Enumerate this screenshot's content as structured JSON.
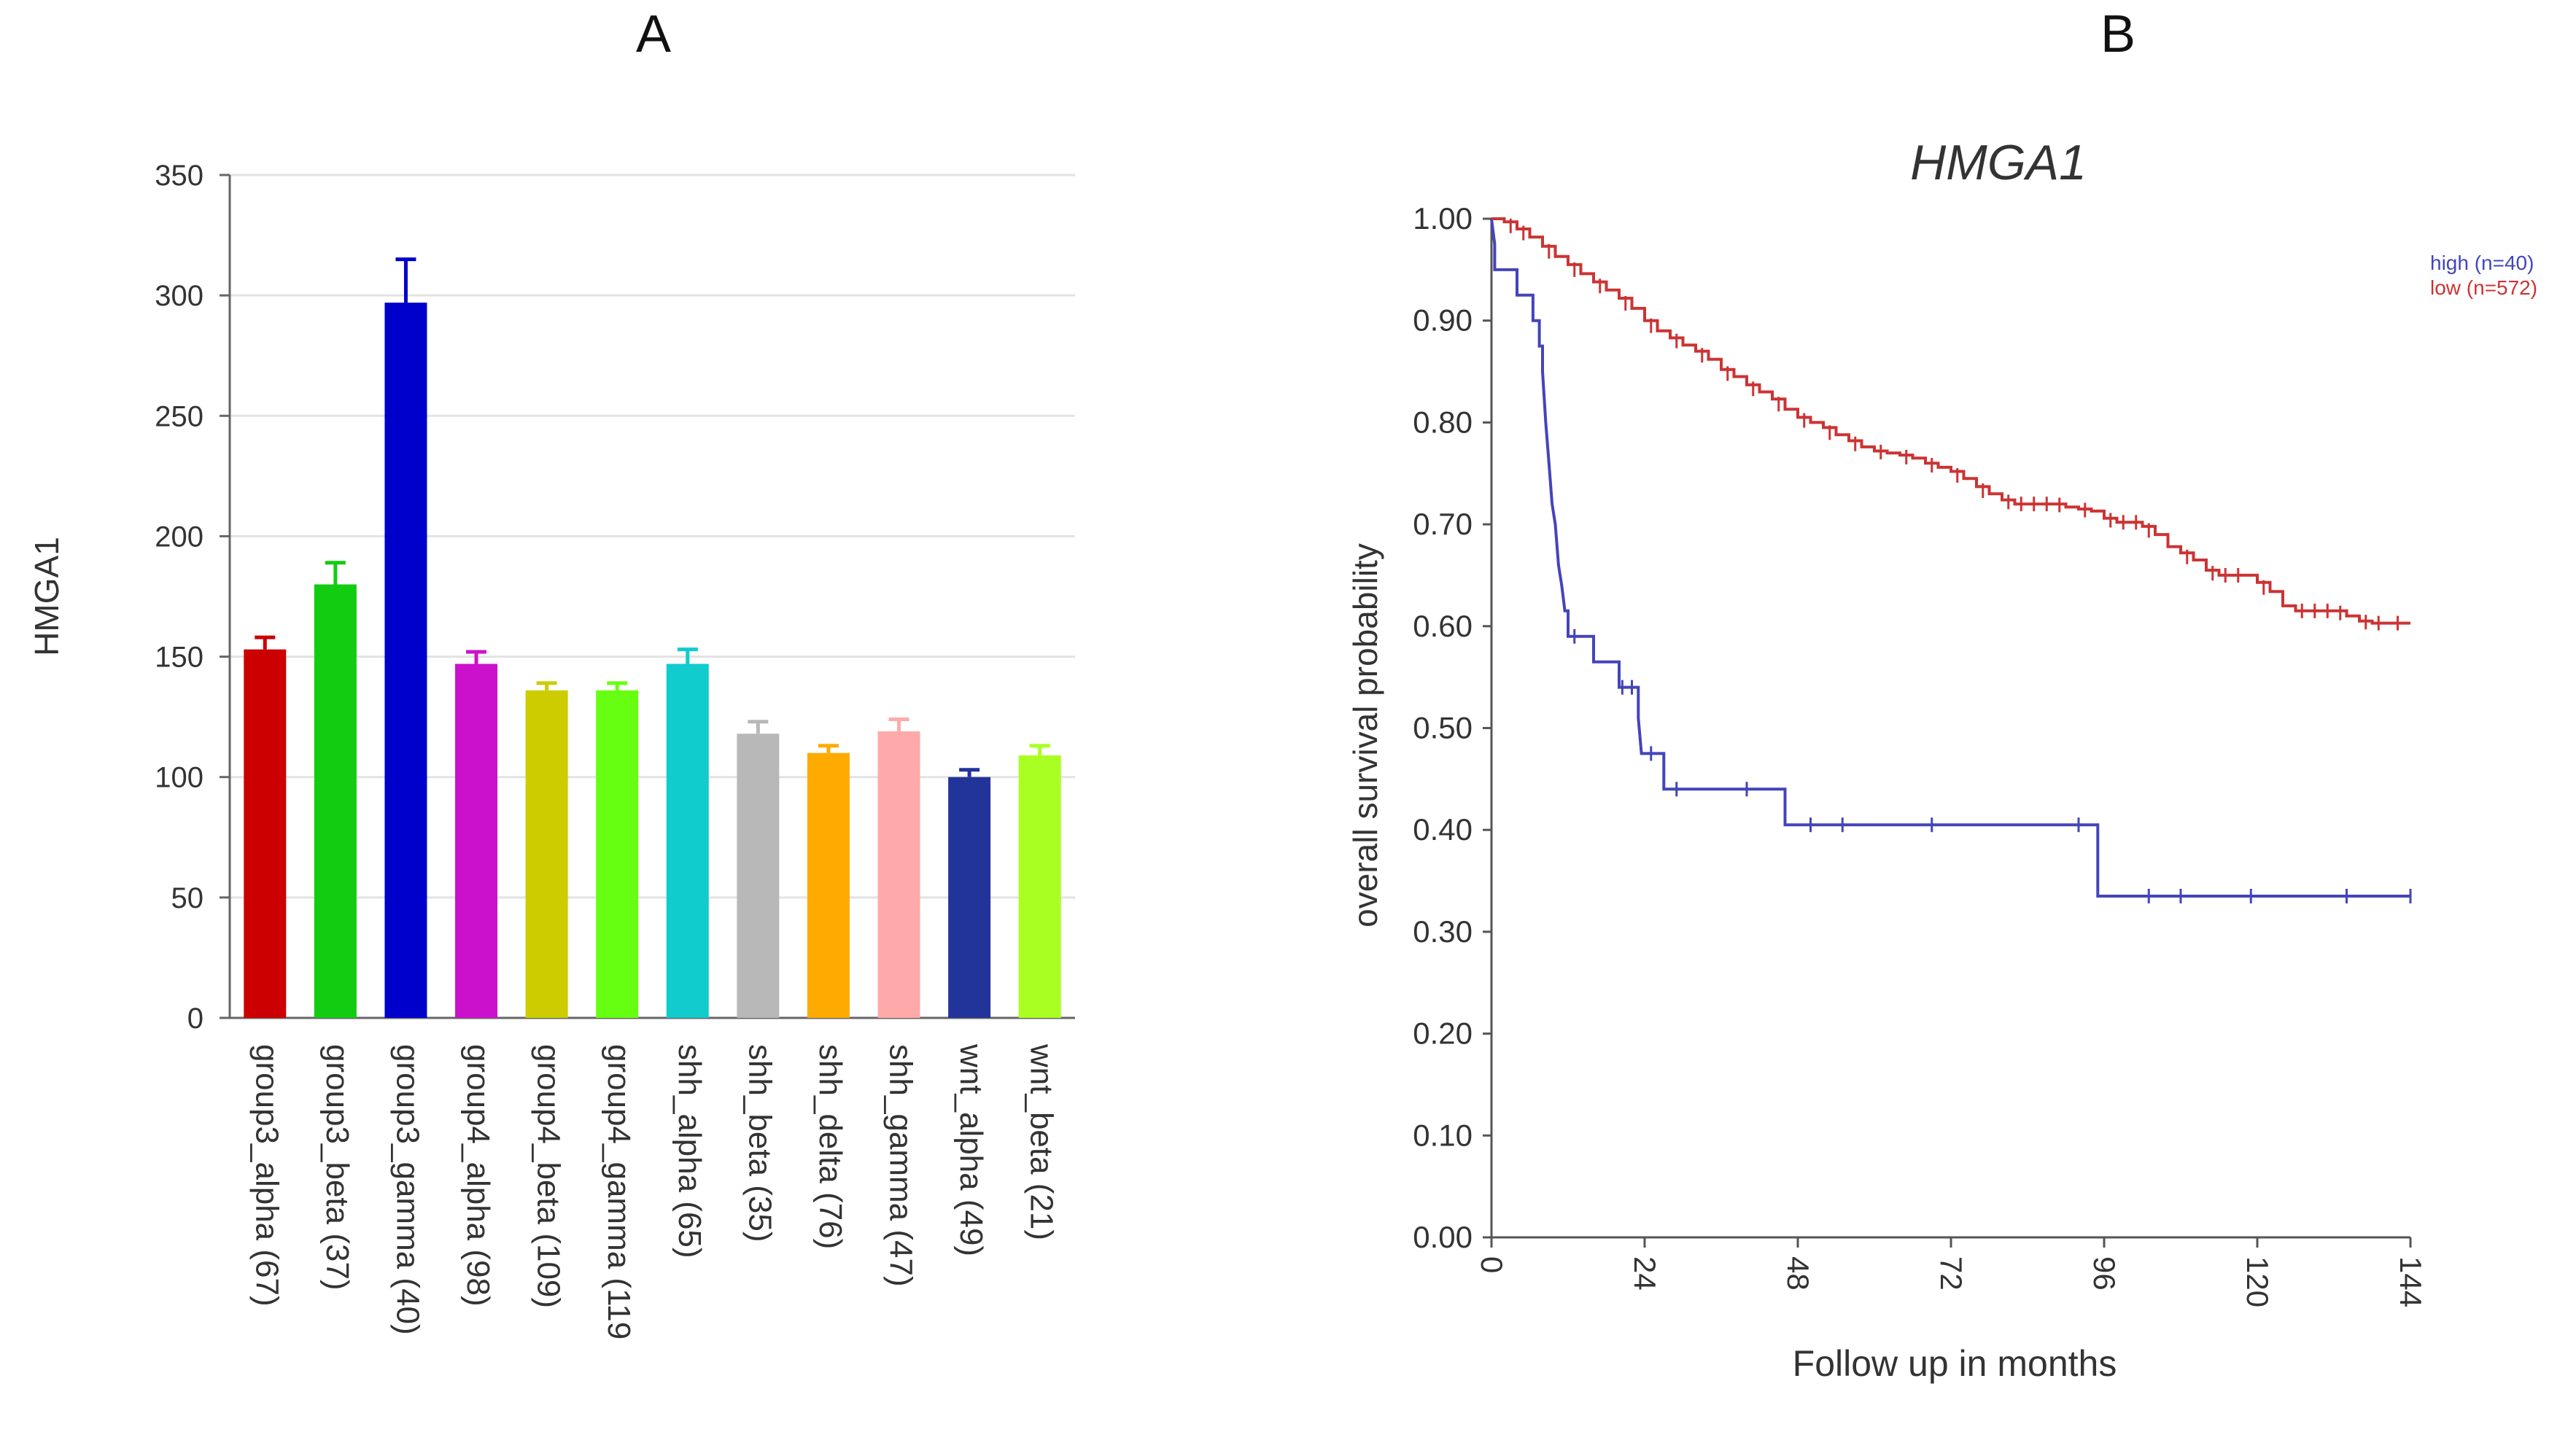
{
  "panels": {
    "a": "A",
    "b": "B"
  },
  "chart_data": [
    {
      "type": "bar",
      "panel": "A",
      "ylabel": "HMGA1",
      "xlabel": "",
      "ylim": [
        0,
        350
      ],
      "yticks": [
        0,
        50,
        100,
        150,
        200,
        250,
        300,
        350
      ],
      "grid": true,
      "categories": [
        "group3_alpha (67)",
        "group3_beta (37)",
        "group3_gamma (40)",
        "group4_alpha (98)",
        "group4_beta (109)",
        "group4_gamma (119",
        "shh_alpha (65)",
        "shh_beta (35)",
        "shh_delta (76)",
        "shh_gamma (47)",
        "wnt_alpha (49)",
        "wnt_beta (21)"
      ],
      "values": [
        153,
        180,
        297,
        147,
        136,
        136,
        147,
        118,
        110,
        119,
        100,
        109
      ],
      "errors": [
        5,
        9,
        18,
        5,
        3,
        3,
        6,
        5,
        3,
        5,
        3,
        4
      ],
      "colors": [
        "#cc0000",
        "#11cc11",
        "#0000cc",
        "#cc11cc",
        "#cccc00",
        "#66ff11",
        "#11cccc",
        "#b8b8b8",
        "#ffaa00",
        "#ffaaaa",
        "#223399",
        "#aaff22"
      ]
    },
    {
      "type": "line",
      "panel": "B",
      "title": "HMGA1",
      "xlabel": "Follow up in months",
      "ylabel": "overall survival probability",
      "xlim": [
        0,
        144
      ],
      "ylim": [
        0,
        1
      ],
      "xticks": [
        0,
        24,
        48,
        72,
        96,
        120,
        144
      ],
      "yticks": [
        "0.00",
        "0.10",
        "0.20",
        "0.30",
        "0.40",
        "0.50",
        "0.60",
        "0.70",
        "0.80",
        "0.90",
        "1.00"
      ],
      "legend": "top-right",
      "series": [
        {
          "name": "high (n=40)",
          "color": "#4444bb",
          "steps": [
            [
              0,
              1.0
            ],
            [
              0.5,
              0.975
            ],
            [
              0.5,
              0.95
            ],
            [
              4,
              0.95
            ],
            [
              4,
              0.925
            ],
            [
              6.5,
              0.925
            ],
            [
              6.5,
              0.9
            ],
            [
              7.5,
              0.9
            ],
            [
              7.5,
              0.875
            ],
            [
              8,
              0.875
            ],
            [
              8,
              0.85
            ],
            [
              8.5,
              0.8
            ],
            [
              9,
              0.76
            ],
            [
              9.5,
              0.72
            ],
            [
              10,
              0.7
            ],
            [
              10.5,
              0.66
            ],
            [
              11,
              0.64
            ],
            [
              11.5,
              0.615
            ],
            [
              12,
              0.615
            ],
            [
              12,
              0.59
            ],
            [
              16,
              0.59
            ],
            [
              16,
              0.565
            ],
            [
              20,
              0.565
            ],
            [
              20,
              0.54
            ],
            [
              23,
              0.54
            ],
            [
              23,
              0.51
            ],
            [
              23.5,
              0.475
            ],
            [
              27,
              0.475
            ],
            [
              27,
              0.44
            ],
            [
              46,
              0.44
            ],
            [
              46,
              0.405
            ],
            [
              95,
              0.405
            ],
            [
              95,
              0.335
            ],
            [
              144,
              0.335
            ]
          ],
          "censors": [
            [
              13,
              0.59
            ],
            [
              20.5,
              0.54
            ],
            [
              22,
              0.54
            ],
            [
              25,
              0.475
            ],
            [
              29,
              0.44
            ],
            [
              40,
              0.44
            ],
            [
              50,
              0.405
            ],
            [
              55,
              0.405
            ],
            [
              69,
              0.405
            ],
            [
              92,
              0.405
            ],
            [
              103,
              0.335
            ],
            [
              108,
              0.335
            ],
            [
              119,
              0.335
            ],
            [
              134,
              0.335
            ],
            [
              144,
              0.335
            ]
          ]
        },
        {
          "name": "low (n=572)",
          "color": "#cc3333",
          "points": [
            [
              0,
              1.0
            ],
            [
              2,
              0.997
            ],
            [
              4,
              0.99
            ],
            [
              6,
              0.982
            ],
            [
              8,
              0.973
            ],
            [
              10,
              0.963
            ],
            [
              12,
              0.955
            ],
            [
              14,
              0.946
            ],
            [
              16,
              0.938
            ],
            [
              18,
              0.93
            ],
            [
              20,
              0.922
            ],
            [
              22,
              0.912
            ],
            [
              24,
              0.9
            ],
            [
              26,
              0.89
            ],
            [
              28,
              0.883
            ],
            [
              30,
              0.876
            ],
            [
              32,
              0.87
            ],
            [
              34,
              0.862
            ],
            [
              36,
              0.852
            ],
            [
              38,
              0.845
            ],
            [
              40,
              0.837
            ],
            [
              42,
              0.83
            ],
            [
              44,
              0.823
            ],
            [
              46,
              0.813
            ],
            [
              48,
              0.805
            ],
            [
              50,
              0.8
            ],
            [
              52,
              0.795
            ],
            [
              54,
              0.788
            ],
            [
              56,
              0.782
            ],
            [
              58,
              0.776
            ],
            [
              60,
              0.772
            ],
            [
              62,
              0.77
            ],
            [
              64,
              0.768
            ],
            [
              66,
              0.765
            ],
            [
              68,
              0.76
            ],
            [
              70,
              0.756
            ],
            [
              72,
              0.752
            ],
            [
              74,
              0.745
            ],
            [
              76,
              0.737
            ],
            [
              78,
              0.73
            ],
            [
              80,
              0.724
            ],
            [
              82,
              0.72
            ],
            [
              84,
              0.72
            ],
            [
              86,
              0.72
            ],
            [
              88,
              0.72
            ],
            [
              90,
              0.717
            ],
            [
              92,
              0.715
            ],
            [
              94,
              0.713
            ],
            [
              96,
              0.706
            ],
            [
              98,
              0.702
            ],
            [
              100,
              0.702
            ],
            [
              102,
              0.698
            ],
            [
              104,
              0.69
            ],
            [
              106,
              0.678
            ],
            [
              108,
              0.672
            ],
            [
              110,
              0.665
            ],
            [
              112,
              0.655
            ],
            [
              114,
              0.65
            ],
            [
              116,
              0.65
            ],
            [
              118,
              0.65
            ],
            [
              120,
              0.643
            ],
            [
              122,
              0.634
            ],
            [
              124,
              0.62
            ],
            [
              126,
              0.615
            ],
            [
              128,
              0.615
            ],
            [
              130,
              0.615
            ],
            [
              132,
              0.615
            ],
            [
              134,
              0.61
            ],
            [
              136,
              0.605
            ],
            [
              138,
              0.603
            ],
            [
              140,
              0.603
            ],
            [
              144,
              0.603
            ]
          ],
          "censors": [
            [
              3,
              0.993
            ],
            [
              5,
              0.986
            ],
            [
              9,
              0.968
            ],
            [
              13,
              0.95
            ],
            [
              17,
              0.934
            ],
            [
              21,
              0.917
            ],
            [
              25,
              0.895
            ],
            [
              29,
              0.88
            ],
            [
              33,
              0.866
            ],
            [
              37,
              0.848
            ],
            [
              41,
              0.833
            ],
            [
              45,
              0.818
            ],
            [
              49,
              0.802
            ],
            [
              53,
              0.79
            ],
            [
              57,
              0.779
            ],
            [
              61,
              0.771
            ],
            [
              65,
              0.766
            ],
            [
              69,
              0.758
            ],
            [
              73,
              0.748
            ],
            [
              77,
              0.733
            ],
            [
              81,
              0.722
            ],
            [
              83,
              0.72
            ],
            [
              85,
              0.72
            ],
            [
              87,
              0.72
            ],
            [
              89,
              0.719
            ],
            [
              93,
              0.714
            ],
            [
              97,
              0.704
            ],
            [
              99,
              0.702
            ],
            [
              101,
              0.702
            ],
            [
              103,
              0.694
            ],
            [
              109,
              0.668
            ],
            [
              113,
              0.652
            ],
            [
              115,
              0.65
            ],
            [
              117,
              0.65
            ],
            [
              121,
              0.638
            ],
            [
              127,
              0.615
            ],
            [
              129,
              0.615
            ],
            [
              131,
              0.615
            ],
            [
              133,
              0.613
            ],
            [
              137,
              0.604
            ],
            [
              139,
              0.603
            ],
            [
              142,
              0.603
            ]
          ]
        }
      ]
    }
  ]
}
